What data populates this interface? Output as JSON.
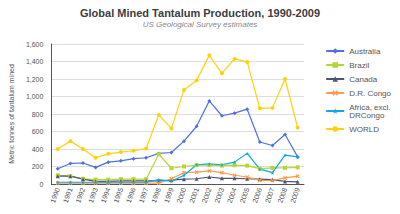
{
  "chart_data": {
    "type": "line",
    "title": "Global Mined Tantalum Production, 1990-2009",
    "subtitle": "US Geological Survey estimates",
    "ylabel": "Metric tonnes of tantalum mined",
    "categories": [
      "1990",
      "1991",
      "1992",
      "1993",
      "1994",
      "1995",
      "1996",
      "1997",
      "1998",
      "1999",
      "2000",
      "2001",
      "2002",
      "2003",
      "2004",
      "2005",
      "2006",
      "2007",
      "2008",
      "2009"
    ],
    "series": [
      {
        "name": "Australia",
        "marker": "diamond",
        "values": [
          175,
          235,
          240,
          190,
          250,
          265,
          290,
          300,
          350,
          360,
          490,
          660,
          950,
          780,
          810,
          855,
          480,
          440,
          565,
          310
        ]
      },
      {
        "name": "Brazil",
        "marker": "square",
        "values": [
          100,
          90,
          60,
          50,
          50,
          55,
          55,
          55,
          340,
          180,
          200,
          215,
          215,
          210,
          215,
          210,
          175,
          185,
          185,
          190
        ]
      },
      {
        "name": "Canada",
        "marker": "triangle",
        "values": [
          90,
          90,
          55,
          30,
          30,
          35,
          35,
          35,
          35,
          45,
          55,
          60,
          80,
          65,
          65,
          60,
          55,
          50,
          30,
          25
        ]
      },
      {
        "name": "D.R. Congo",
        "marker": "x",
        "values": [
          10,
          10,
          10,
          10,
          10,
          10,
          10,
          10,
          10,
          60,
          130,
          135,
          150,
          130,
          100,
          80,
          40,
          40,
          70,
          90
        ]
      },
      {
        "name": "Africa, excl.\nDRCongo",
        "marker": "star",
        "values": [
          20,
          20,
          20,
          20,
          20,
          20,
          20,
          20,
          50,
          30,
          100,
          220,
          230,
          220,
          250,
          350,
          170,
          130,
          330,
          310
        ]
      },
      {
        "name": "WORLD",
        "marker": "circle",
        "values": [
          400,
          490,
          400,
          300,
          345,
          365,
          380,
          405,
          790,
          635,
          1075,
          1185,
          1470,
          1265,
          1430,
          1395,
          865,
          870,
          1200,
          645
        ]
      }
    ],
    "ylim": [
      0,
      1600
    ],
    "yticks": [
      0,
      200,
      400,
      600,
      800,
      1000,
      1200,
      1400,
      1600
    ],
    "grid": true,
    "legend": "right"
  }
}
